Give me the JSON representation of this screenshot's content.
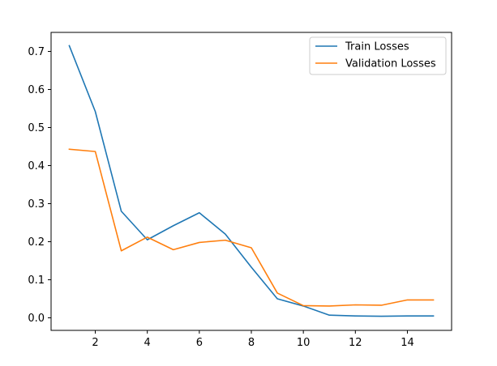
{
  "chart_data": {
    "type": "line",
    "title": "",
    "xlabel": "",
    "ylabel": "",
    "xlim": [
      0.3,
      15.7
    ],
    "ylim": [
      -0.033,
      0.75
    ],
    "grid": false,
    "legend_position": "top-right",
    "xticks": [
      2,
      4,
      6,
      8,
      10,
      12,
      14
    ],
    "yticks": [
      0.0,
      0.1,
      0.2,
      0.3,
      0.4,
      0.5,
      0.6,
      0.7
    ],
    "xtick_labels": [
      "2",
      "4",
      "6",
      "8",
      "10",
      "12",
      "14"
    ],
    "ytick_labels": [
      "0.0",
      "0.1",
      "0.2",
      "0.3",
      "0.4",
      "0.5",
      "0.6",
      "0.7"
    ],
    "x": [
      1,
      2,
      3,
      4,
      5,
      6,
      7,
      8,
      9,
      10,
      11,
      12,
      13,
      14,
      15
    ],
    "series": [
      {
        "name": "Train Losses",
        "color": "#1f77b4",
        "values": [
          0.715,
          0.542,
          0.28,
          0.205,
          0.242,
          0.276,
          0.22,
          0.133,
          0.05,
          0.031,
          0.007,
          0.005,
          0.004,
          0.005,
          0.005
        ]
      },
      {
        "name": "Validation Losses",
        "color": "#ff7f0e",
        "values": [
          0.443,
          0.437,
          0.176,
          0.212,
          0.179,
          0.198,
          0.204,
          0.184,
          0.065,
          0.032,
          0.031,
          0.034,
          0.033,
          0.047,
          0.047
        ]
      }
    ]
  }
}
